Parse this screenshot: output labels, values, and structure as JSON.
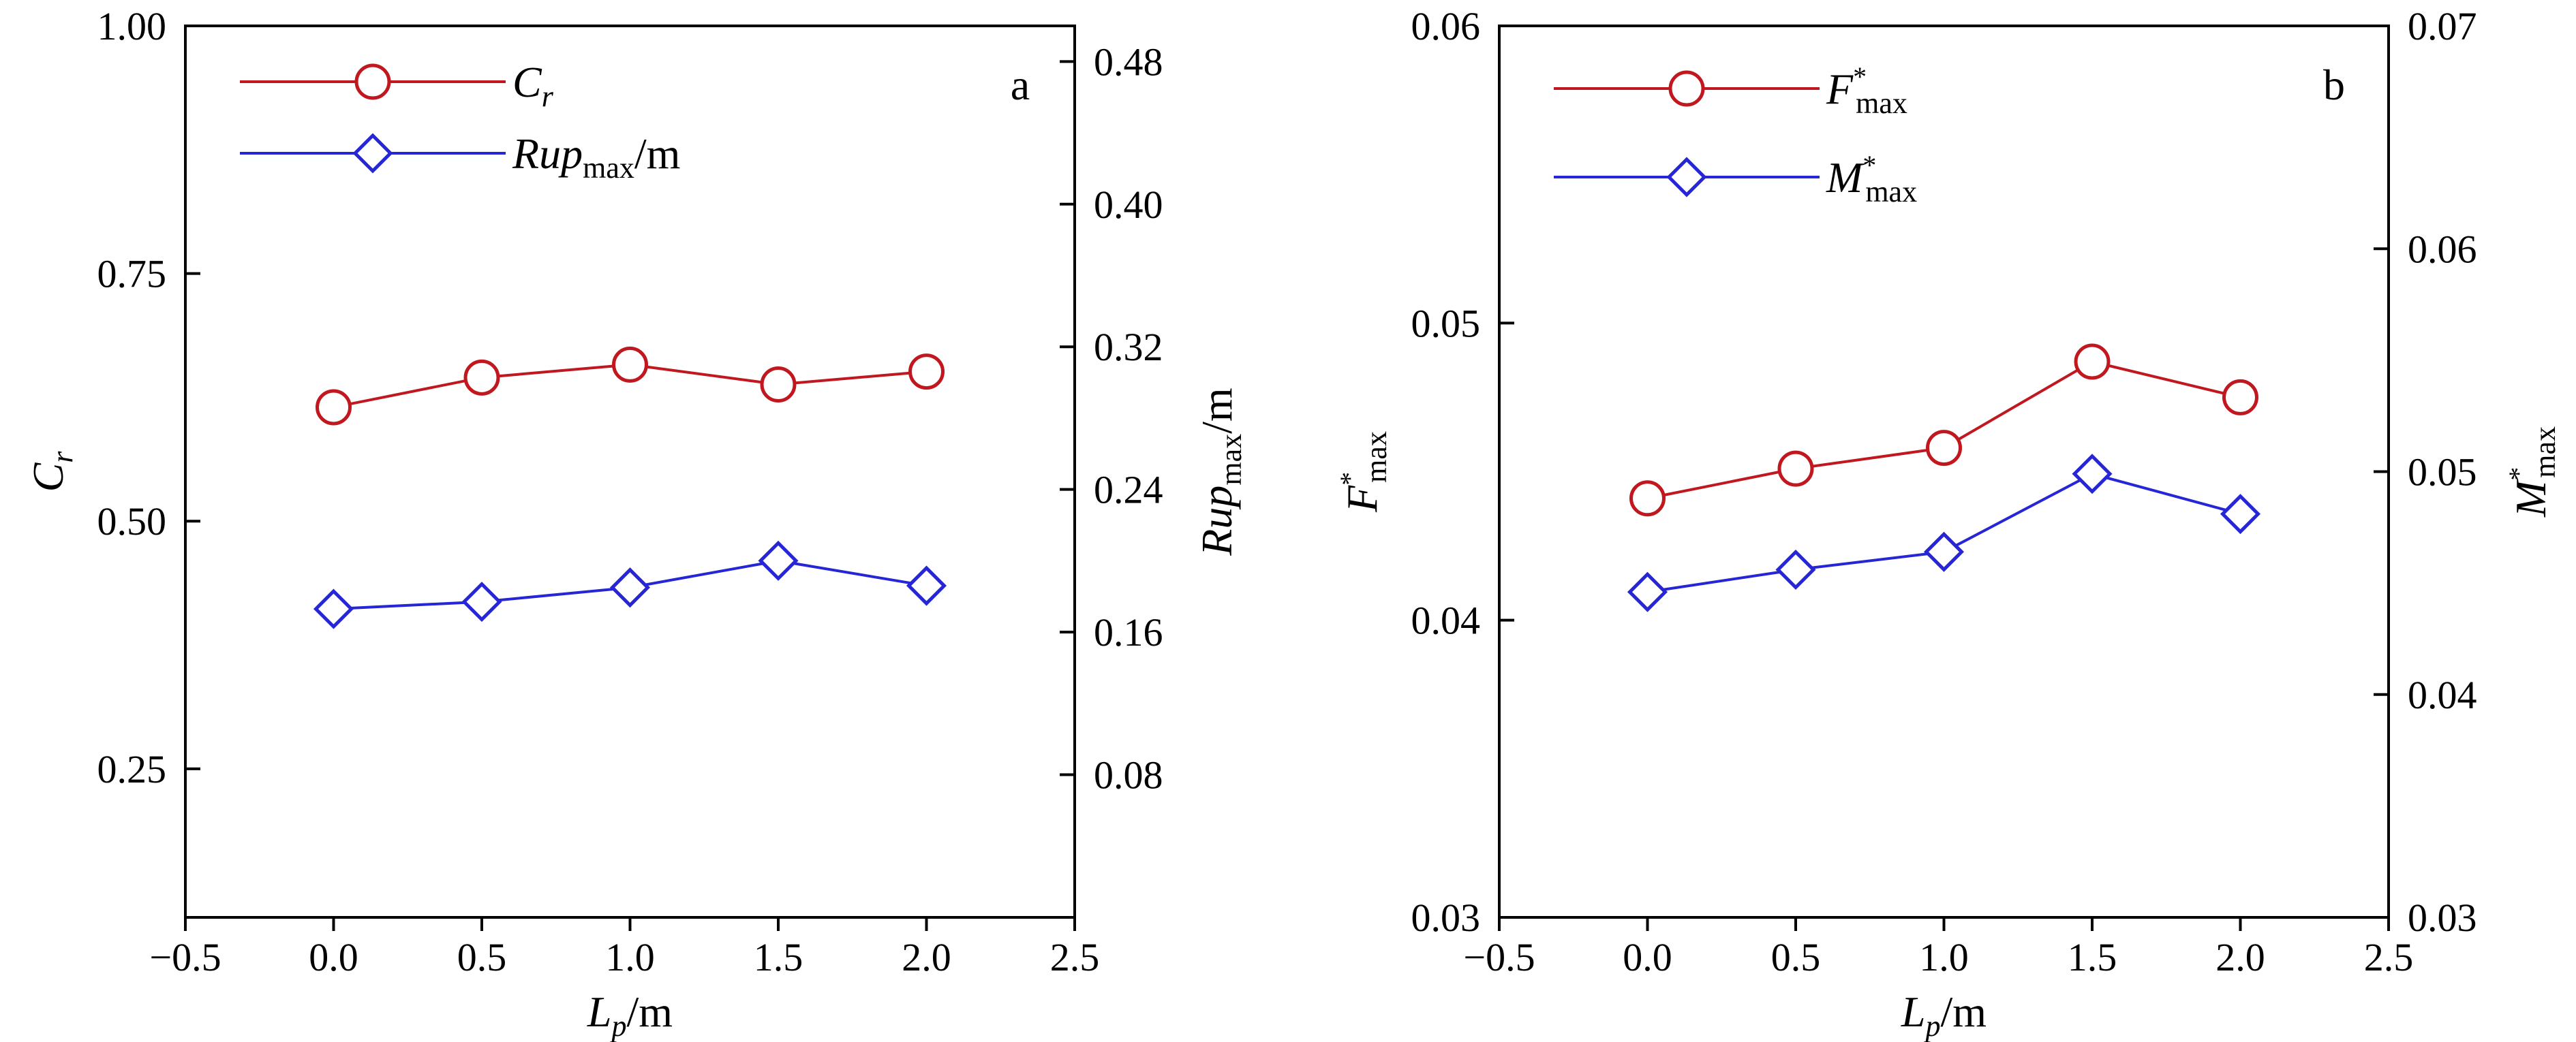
{
  "colors": {
    "red": "#c0181e",
    "blue": "#2626d6",
    "axis": "#000000"
  },
  "chart_data": [
    {
      "type": "line",
      "panel_label": "a",
      "x": [
        0.0,
        0.5,
        1.0,
        1.5,
        2.0
      ],
      "xlim": [
        -0.5,
        2.5
      ],
      "xticks": [
        "−0.5",
        "0.0",
        "0.5",
        "1.0",
        "1.5",
        "2.0",
        "2.5"
      ],
      "xtick_values": [
        -0.5,
        0.0,
        0.5,
        1.0,
        1.5,
        2.0,
        2.5
      ],
      "xlabel": {
        "main": "L",
        "sub": "p",
        "unit": "/m"
      },
      "ylim_left": [
        0.1,
        1.0
      ],
      "yticks_left": [
        "0.25",
        "0.50",
        "0.75",
        "1.00"
      ],
      "ytick_values_left": [
        0.25,
        0.5,
        0.75,
        1.0
      ],
      "ylabel_left": {
        "main": "C",
        "sub": "r"
      },
      "ylim_right": [
        0.0,
        0.5
      ],
      "yticks_right": [
        "0.08",
        "0.16",
        "0.24",
        "0.32",
        "0.40",
        "0.48"
      ],
      "ytick_values_right": [
        0.08,
        0.16,
        0.24,
        0.32,
        0.4,
        0.48
      ],
      "ylabel_right": {
        "main": "Rup",
        "sub": "max",
        "unit": "/m"
      },
      "legend_position": "top-left",
      "series": [
        {
          "name": "C_r",
          "label_main": "C",
          "label_sub": "r",
          "axis": "left",
          "marker": "circle",
          "color": "#c0181e",
          "values": [
            0.615,
            0.645,
            0.658,
            0.638,
            0.651
          ]
        },
        {
          "name": "Rup_max/m",
          "label_main": "Rup",
          "label_sub": "max",
          "label_unit": "/m",
          "axis": "right",
          "marker": "diamond",
          "color": "#2626d6",
          "values": [
            0.173,
            0.177,
            0.185,
            0.2,
            0.186
          ]
        }
      ]
    },
    {
      "type": "line",
      "panel_label": "b",
      "x": [
        0.0,
        0.5,
        1.0,
        1.5,
        2.0
      ],
      "xlim": [
        -0.5,
        2.5
      ],
      "xticks": [
        "−0.5",
        "0.0",
        "0.5",
        "1.0",
        "1.5",
        "2.0",
        "2.5"
      ],
      "xtick_values": [
        -0.5,
        0.0,
        0.5,
        1.0,
        1.5,
        2.0,
        2.5
      ],
      "xlabel": {
        "main": "L",
        "sub": "p",
        "unit": "/m"
      },
      "ylim_left": [
        0.03,
        0.06
      ],
      "yticks_left": [
        "0.03",
        "0.04",
        "0.05",
        "0.06"
      ],
      "ytick_values_left": [
        0.03,
        0.04,
        0.05,
        0.06
      ],
      "ylabel_left": {
        "main": "F",
        "sup": "*",
        "sub": "max"
      },
      "ylim_right": [
        0.03,
        0.07
      ],
      "yticks_right": [
        "0.03",
        "0.04",
        "0.05",
        "0.06",
        "0.07"
      ],
      "ytick_values_right": [
        0.03,
        0.04,
        0.05,
        0.06,
        0.07
      ],
      "ylabel_right": {
        "main": "M",
        "sup": "*",
        "sub": "max"
      },
      "legend_position": "top-left",
      "series": [
        {
          "name": "F*_max",
          "label_main": "F",
          "label_sup": "*",
          "label_sub": "max",
          "axis": "left",
          "marker": "circle",
          "color": "#c0181e",
          "values": [
            0.0441,
            0.0451,
            0.0458,
            0.0487,
            0.0475
          ]
        },
        {
          "name": "M*_max",
          "label_main": "M",
          "label_sup": "*",
          "label_sub": "max",
          "axis": "right",
          "marker": "diamond",
          "color": "#2626d6",
          "values": [
            0.0446,
            0.0456,
            0.0464,
            0.0499,
            0.0481
          ]
        }
      ]
    }
  ]
}
